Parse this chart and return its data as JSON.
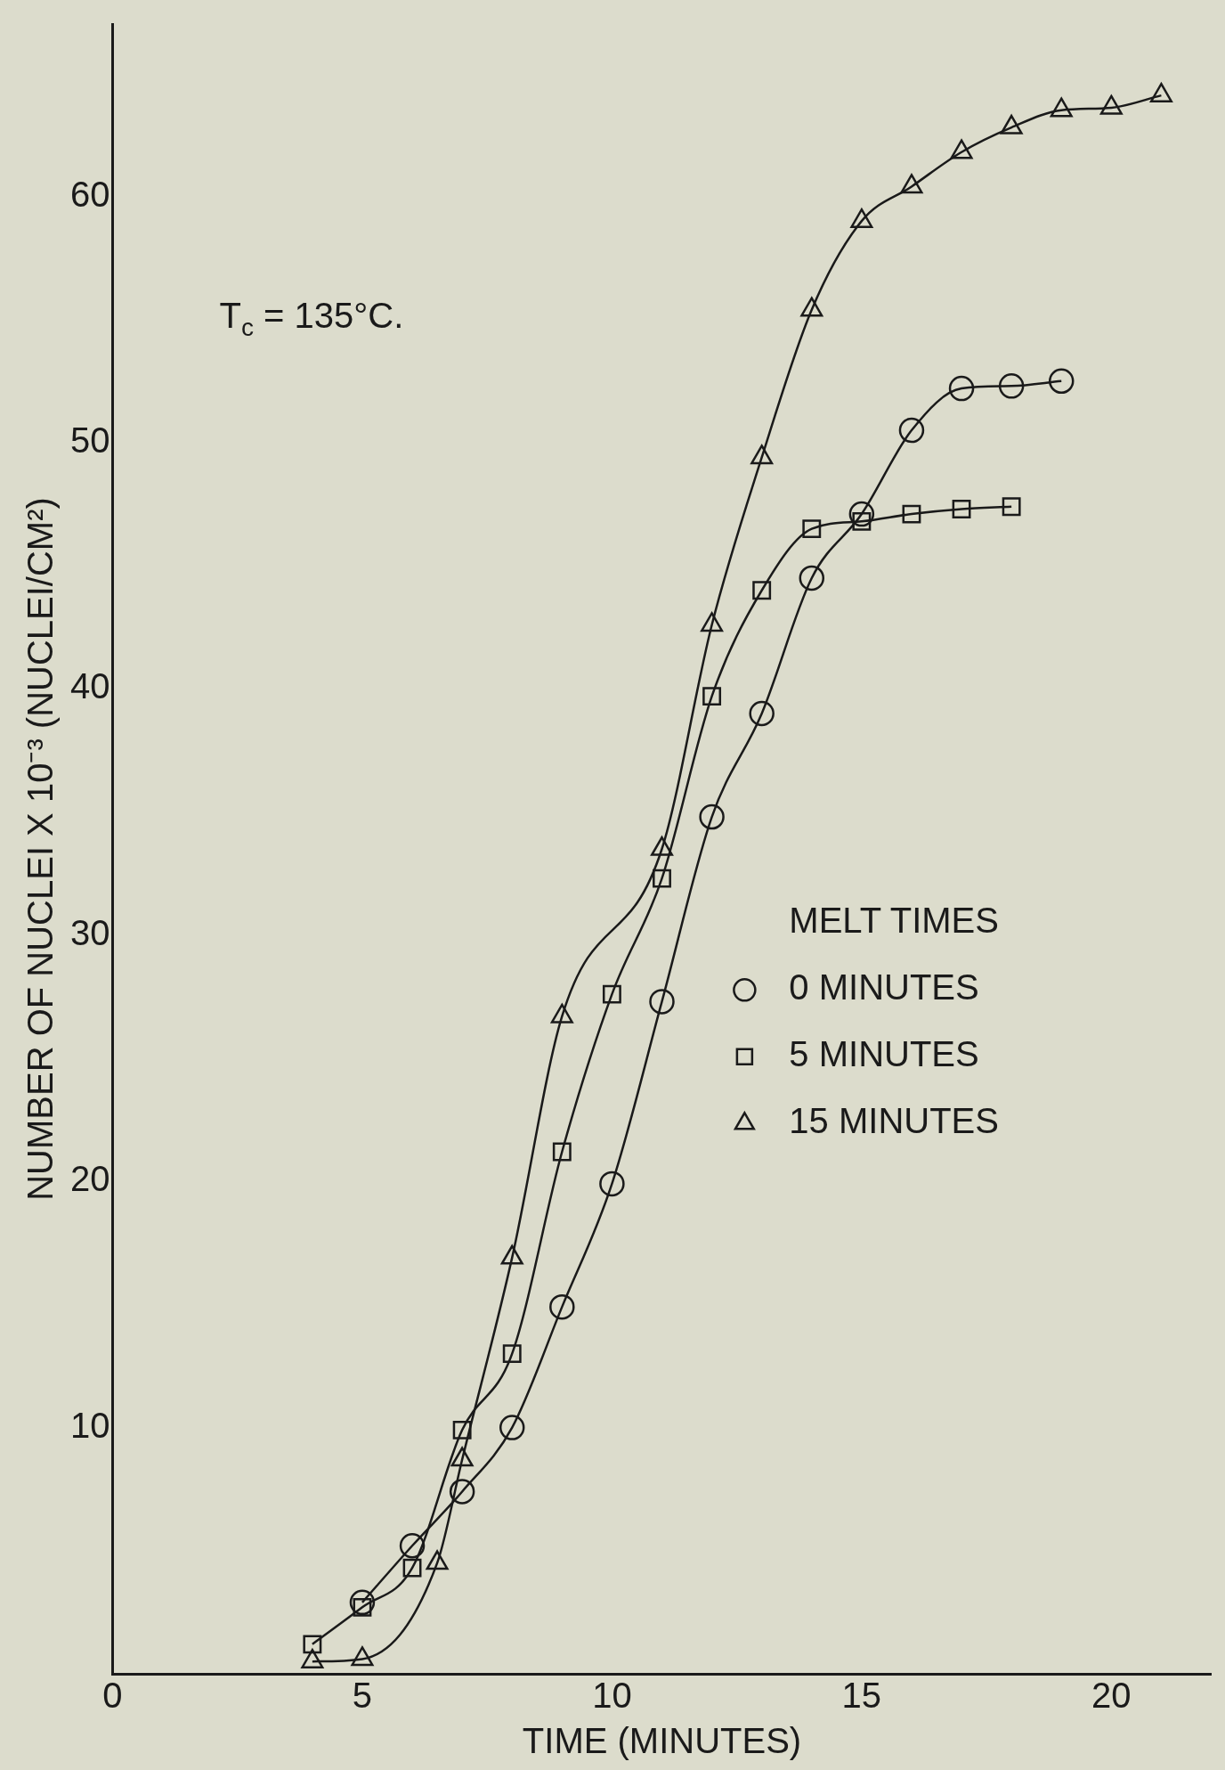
{
  "chart_data": {
    "type": "line",
    "xlabel": "TIME (MINUTES)",
    "ylabel": "NUMBER OF NUCLEI X 10⁻³ (NUCLEI/CM²)",
    "legend_title": "MELT TIMES",
    "legend": "right",
    "grid": false,
    "xlim": [
      0,
      22
    ],
    "ylim": [
      0,
      67
    ],
    "xticks": [
      0,
      5,
      10,
      15,
      20
    ],
    "yticks": [
      10,
      20,
      30,
      40,
      50,
      60
    ],
    "annotations": [
      "T$_{c}$ = 135°C."
    ],
    "series": [
      {
        "name": "0 MINUTES",
        "color": "#1a1a1a",
        "marker": "circle",
        "x": [
          5,
          6,
          7,
          8,
          9,
          10,
          11,
          12,
          13,
          14,
          15,
          16,
          17,
          18,
          19
        ],
        "values": [
          2.9,
          5.2,
          7.4,
          10,
          14.9,
          19.9,
          27.3,
          34.8,
          39,
          44.5,
          47.1,
          50.5,
          52.2,
          52.3,
          52.5
        ]
      },
      {
        "name": "5 MINUTES",
        "color": "#1a1a1a",
        "marker": "square",
        "x": [
          4,
          5,
          6,
          7,
          8,
          9,
          10,
          11,
          12,
          13,
          14,
          15,
          16,
          17,
          18
        ],
        "values": [
          1.2,
          2.7,
          4.3,
          9.9,
          13,
          21.2,
          27.6,
          32.3,
          39.7,
          44,
          46.5,
          46.8,
          47.1,
          47.3,
          47.4
        ]
      },
      {
        "name": "15 MINUTES",
        "color": "#1a1a1a",
        "marker": "triangle",
        "x": [
          4,
          5,
          6.5,
          7,
          8,
          9,
          11,
          12,
          13,
          14,
          15,
          16,
          17,
          18,
          19,
          20,
          21
        ],
        "values": [
          0.5,
          0.6,
          4.5,
          8.7,
          16.9,
          26.7,
          33.5,
          42.6,
          49.4,
          55.4,
          59,
          60.4,
          61.8,
          62.8,
          63.5,
          63.6,
          64.1
        ]
      }
    ]
  }
}
